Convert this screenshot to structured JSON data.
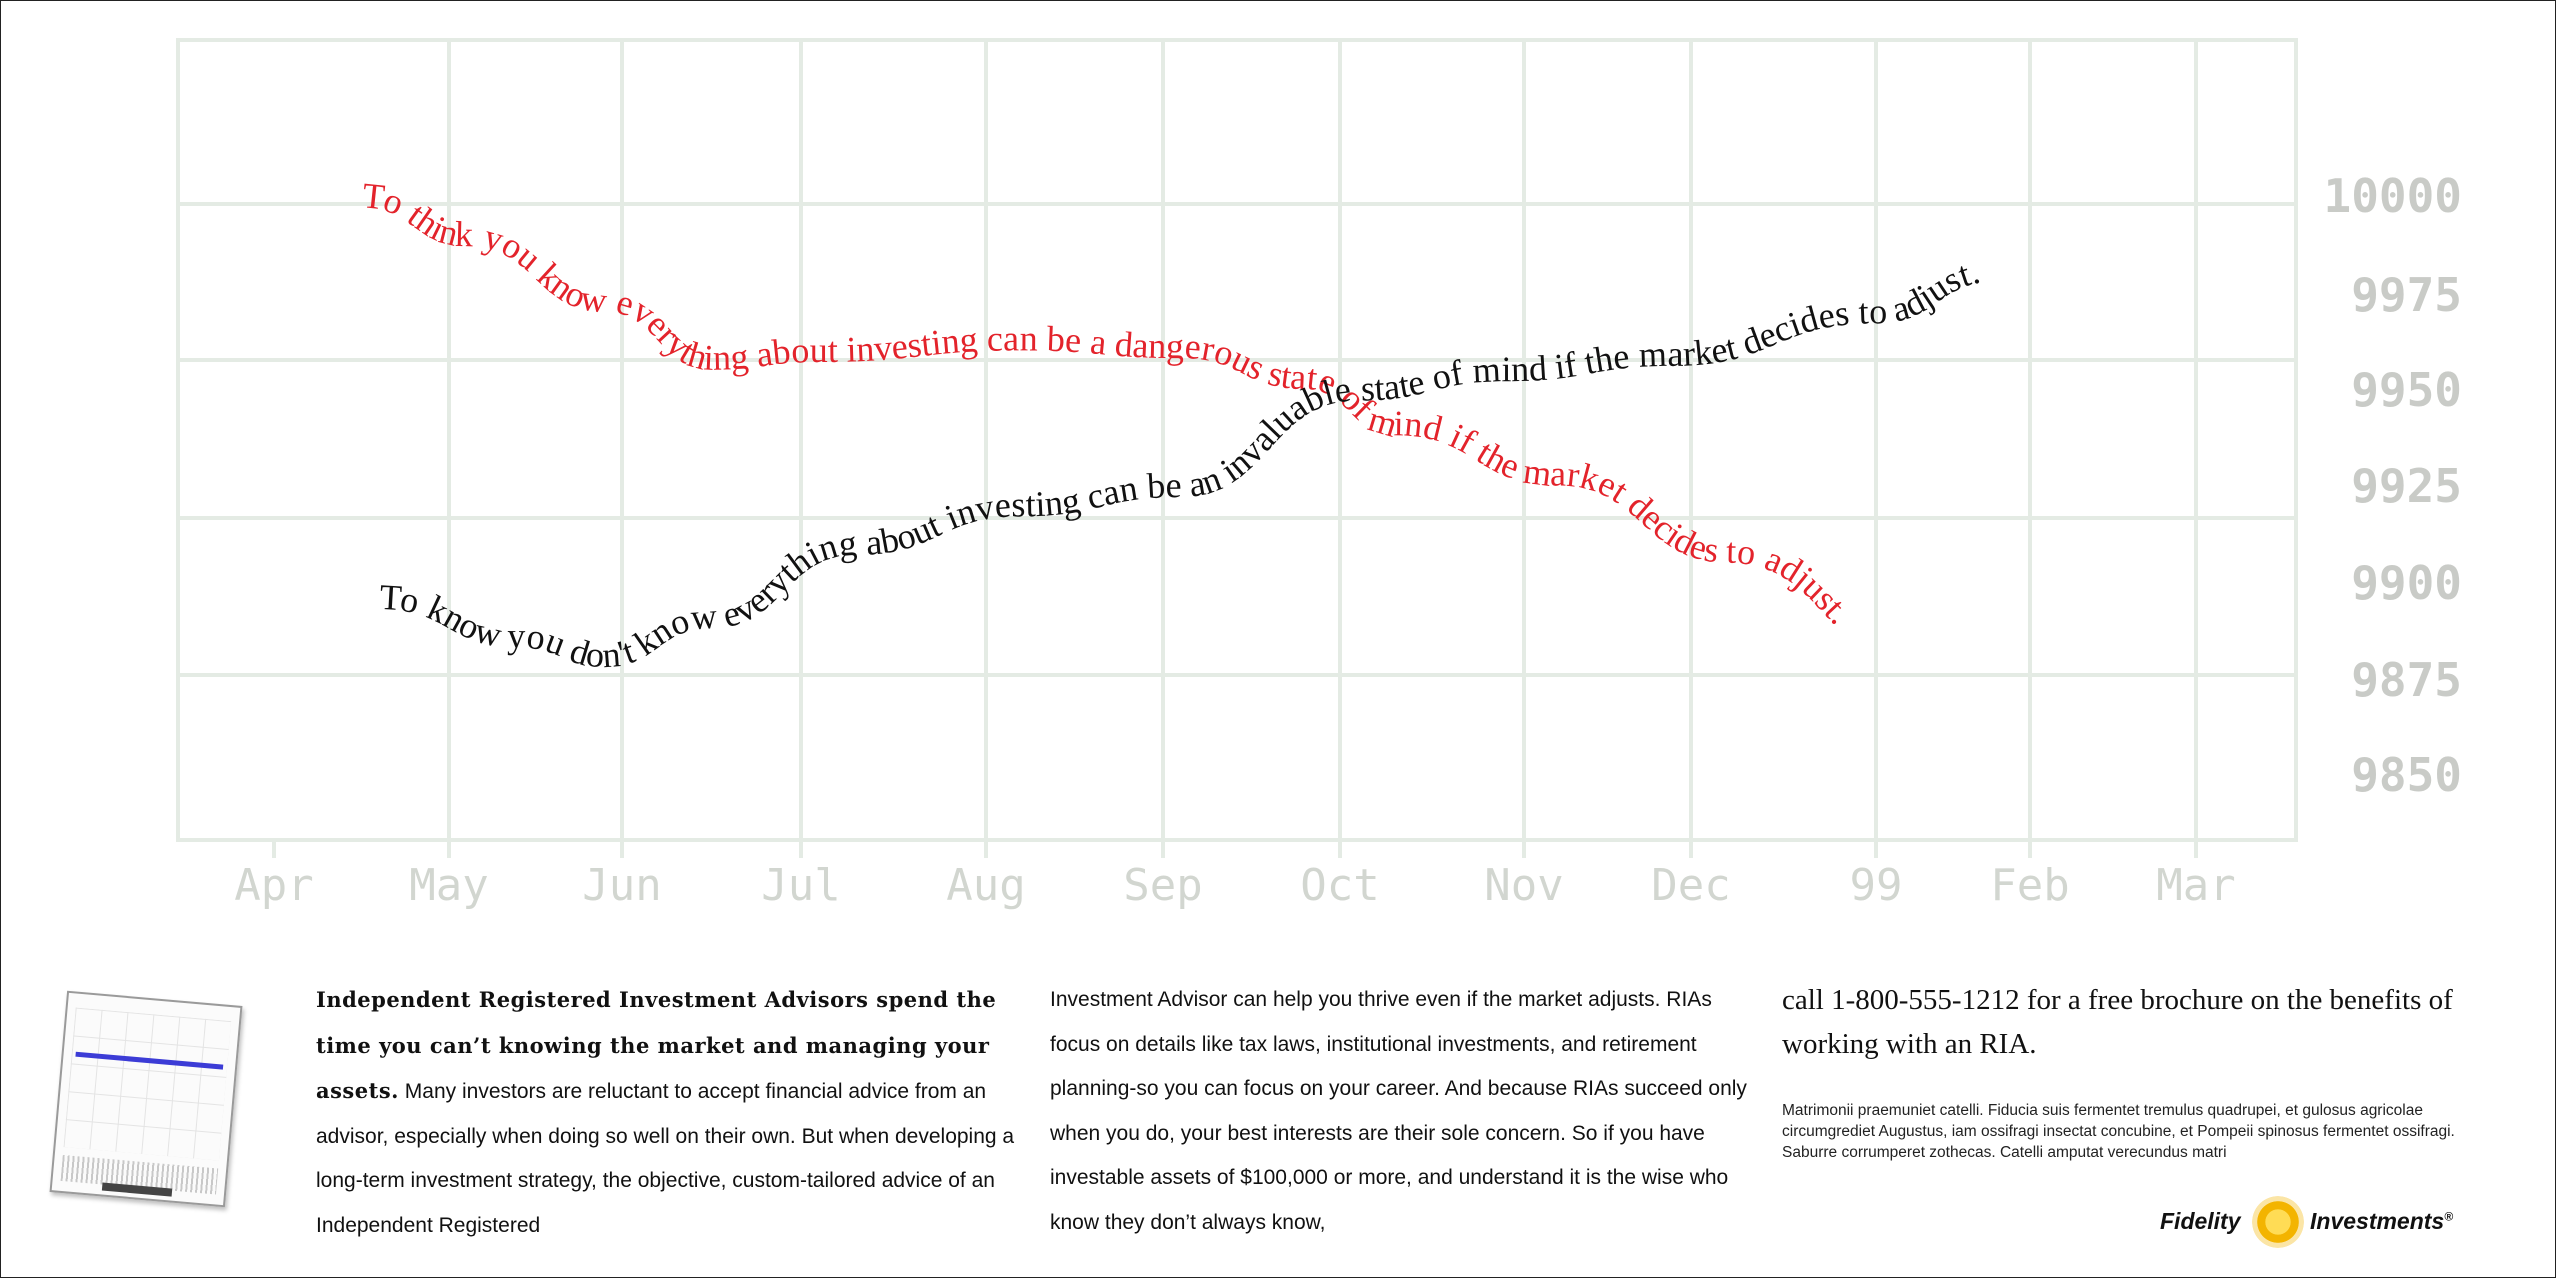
{
  "chart_data": {
    "type": "line",
    "title": "",
    "xlabel": "",
    "ylabel": "",
    "categories": [
      "Apr",
      "May",
      "Jun",
      "Jul",
      "Aug",
      "Sep",
      "Oct",
      "Nov",
      "Dec",
      "99",
      "Feb",
      "Mar"
    ],
    "y_ticks": [
      "10000",
      "9975",
      "9950",
      "9925",
      "9900",
      "9875",
      "9850"
    ],
    "ylim": [
      9835,
      10040
    ],
    "grid": true,
    "series": [
      {
        "name": "",
        "color": "#e3232b",
        "text": "To think you know everything about investing can be a dangerous state of mind if the market decides to adjust.",
        "points": [
          [
            0.5,
            9997
          ],
          [
            1.1,
            9987
          ],
          [
            1.9,
            9970
          ],
          [
            2.5,
            9955
          ],
          [
            3.1,
            9957
          ],
          [
            4.2,
            9960
          ],
          [
            5.1,
            9958
          ],
          [
            5.8,
            9950
          ],
          [
            6.3,
            9938
          ],
          [
            7.2,
            9925
          ],
          [
            8.2,
            9905
          ],
          [
            9.3,
            9878
          ]
        ]
      },
      {
        "name": "",
        "color": "#111111",
        "text": "To know you don't know everything about investing can be an invaluable state of mind if the market decides to adjust.",
        "points": [
          [
            0.6,
            9893
          ],
          [
            1.4,
            9883
          ],
          [
            1.9,
            9878
          ],
          [
            2.5,
            9888
          ],
          [
            3.3,
            9907
          ],
          [
            4.2,
            9917
          ],
          [
            5.1,
            9922
          ],
          [
            6.1,
            9947
          ],
          [
            6.9,
            9952
          ],
          [
            7.9,
            9956
          ],
          [
            9.0,
            9967
          ],
          [
            9.8,
            9978
          ]
        ]
      }
    ]
  },
  "body": {
    "lead": "Independent Registered Investment Advisors spend the time you can’t knowing the market and managing your assets.",
    "col1_rest": " Many investors are reluctant to accept financial advice from an advisor, especially when doing so well on their own. But when developing a long-term investment strategy, the objective, custom-tailored advice of an Independent Registered",
    "col2": "Investment Advisor can help you thrive even if the market adjusts. RIAs focus on details like tax laws, institutional investments, and retirement planning-so you can focus on your career. And because RIAs succeed only when you do, your best interests are their sole concern. So if you have investable assets of $100,000 or more, and understand it is the wise who know they don’t always know,"
  },
  "cta": {
    "call": "call 1-800-555-1212 for a free brochure on the benefits of working with an RIA.",
    "fine_print": "Matrimonii praemuniet catelli. Fiducia suis fermentet tremulus quadrupei, et gulosus agricolae circumgrediet Augustus, iam ossifragi insectat concubine, et Pompeii spinosus fermentet ossifragi. Saburre corrumperet zothecas. Catelli amputat verecundus matri"
  },
  "brand": {
    "name_left": "Fidelity",
    "name_right": "Investments",
    "mark": "®",
    "icon": "sun-logo-icon"
  },
  "thumbnail": {
    "icon": "brochure-thumbnail-icon"
  },
  "colors": {
    "red_text": "#e3232b",
    "black_text": "#111111",
    "grid": "#e4ebe4",
    "tick_text": "#c9cbc7"
  }
}
